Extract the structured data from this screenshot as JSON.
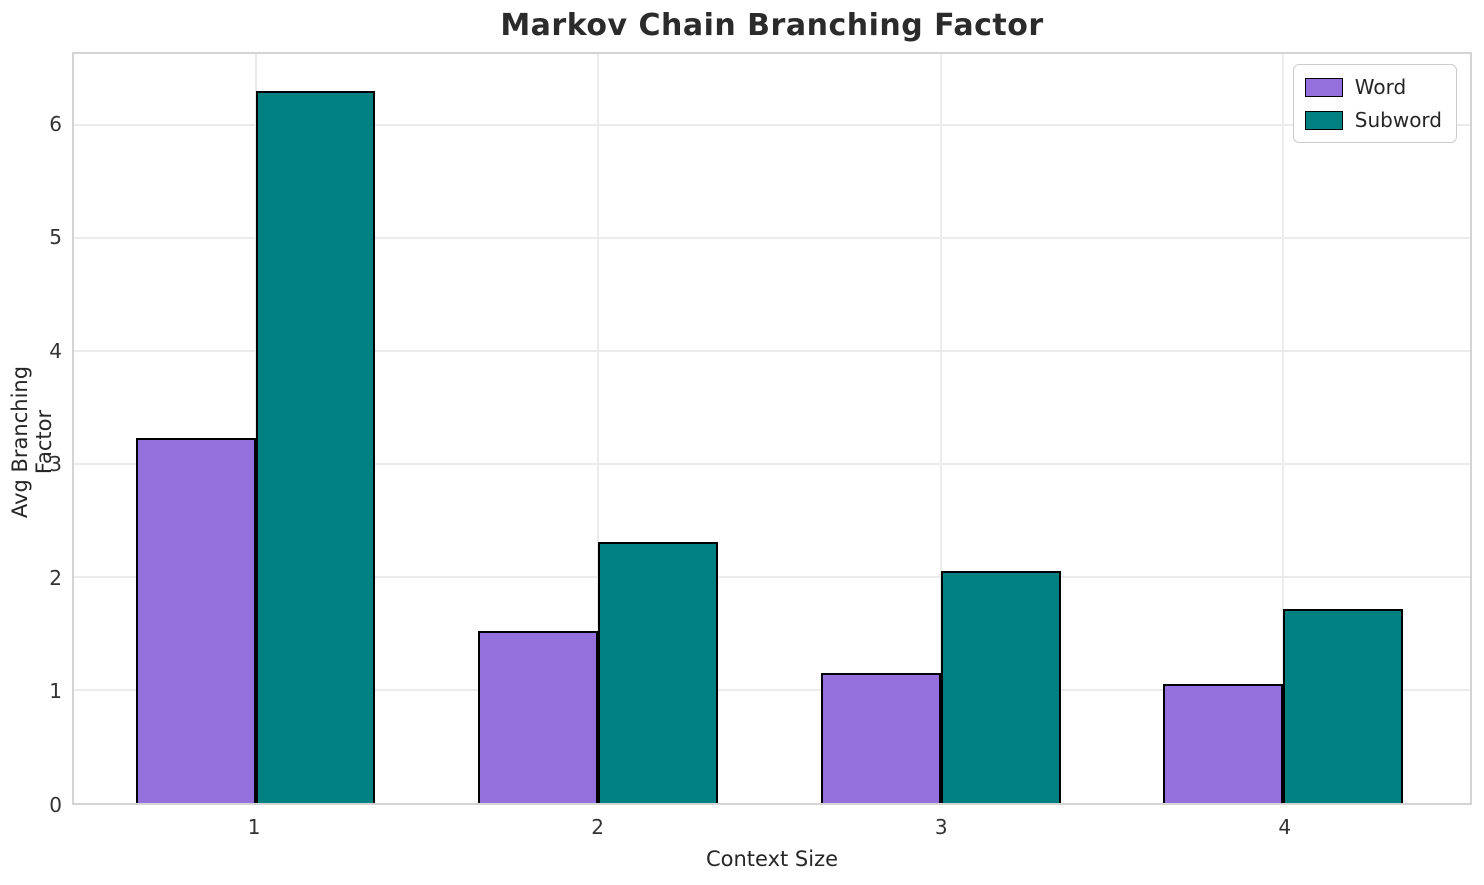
{
  "title": "Markov Chain Branching Factor",
  "chart_data": {
    "type": "bar",
    "title": "Markov Chain Branching Factor",
    "xlabel": "Context Size",
    "ylabel": "Avg Branching Factor",
    "categories": [
      "1",
      "2",
      "3",
      "4"
    ],
    "series": [
      {
        "name": "Word",
        "color": "#9370DB",
        "values": [
          3.23,
          1.52,
          1.15,
          1.05
        ]
      },
      {
        "name": "Subword",
        "color": "#008080",
        "values": [
          6.3,
          2.31,
          2.05,
          1.72
        ]
      }
    ],
    "yticks": [
      0,
      1,
      2,
      3,
      4,
      5,
      6
    ],
    "ylim": [
      0,
      6.63
    ],
    "xlim": [
      0.47,
      4.545
    ],
    "bar_width_units": 0.35,
    "grid": "both",
    "grid_color": "#ebebeb",
    "spine_color": "#d4d4d4",
    "bar_edge_color": "#000000",
    "legend_position": "upper right",
    "legend_entries": [
      "Word",
      "Subword"
    ]
  }
}
